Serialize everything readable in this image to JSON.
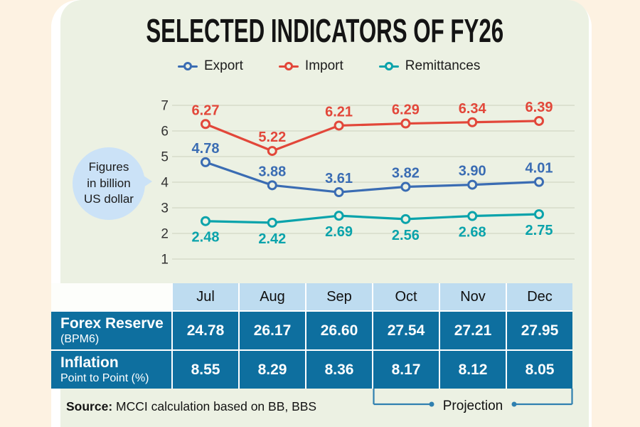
{
  "page": {
    "title": "SELECTED INDICATORS OF FY26",
    "note_bubble": "Figures\nin billion\nUS dollar",
    "projection_label": "Projection",
    "source_label": "Source:",
    "source_text": " MCCI calculation based on BB, BBS"
  },
  "colors": {
    "page_background": "#fdf2e2",
    "panel_background": "#ecf1e3",
    "card_background": "#ffffff",
    "export_blue": "#3a6cb3",
    "import_red": "#e2473a",
    "remittance_teal": "#0aa3ab",
    "table_header_blue": "#bedcf0",
    "table_cell_blue": "#0e6f9f",
    "bubble_blue": "#cbe2f7",
    "bracket_blue": "#3080b0",
    "gridline": "#d6dcc9"
  },
  "chart_data": {
    "type": "line",
    "title": "SELECTED INDICATORS OF FY26",
    "units": "billion US dollar",
    "categories": [
      "Jul",
      "Aug",
      "Sep",
      "Oct",
      "Nov",
      "Dec"
    ],
    "series": [
      {
        "name": "Export",
        "color": "#3a6cb3",
        "values": [
          4.78,
          3.88,
          3.61,
          3.82,
          3.9,
          4.01
        ],
        "labels": [
          "4.78",
          "3.88",
          "3.61",
          "3.82",
          "3.90",
          "4.01"
        ],
        "label_position": "above"
      },
      {
        "name": "Import",
        "color": "#e2473a",
        "values": [
          6.27,
          5.22,
          6.21,
          6.29,
          6.34,
          6.39
        ],
        "labels": [
          "6.27",
          "5.22",
          "6.21",
          "6.29",
          "6.34",
          "6.39"
        ],
        "label_position": "above"
      },
      {
        "name": "Remittances",
        "color": "#0aa3ab",
        "values": [
          2.48,
          2.42,
          2.69,
          2.56,
          2.68,
          2.75
        ],
        "labels": [
          "2.48",
          "2.42",
          "2.69",
          "2.56",
          "2.68",
          "2.75"
        ],
        "label_position": "below"
      }
    ],
    "ylim": [
      1,
      7
    ],
    "yticks": [
      7,
      6,
      5,
      4,
      3,
      2,
      1
    ],
    "grid": true,
    "legend_position": "top"
  },
  "table": {
    "columns": [
      "Jul",
      "Aug",
      "Sep",
      "Oct",
      "Nov",
      "Dec"
    ],
    "rows": [
      {
        "label": "Forex Reserve",
        "sublabel": "(BPM6)",
        "values": [
          "24.78",
          "26.17",
          "26.60",
          "27.54",
          "27.21",
          "27.95"
        ]
      },
      {
        "label": "Inflation",
        "sublabel": "Point to Point (%)",
        "values": [
          "8.55",
          "8.29",
          "8.36",
          "8.17",
          "8.12",
          "8.05"
        ]
      }
    ],
    "projection_columns": [
      "Oct",
      "Nov",
      "Dec"
    ]
  }
}
